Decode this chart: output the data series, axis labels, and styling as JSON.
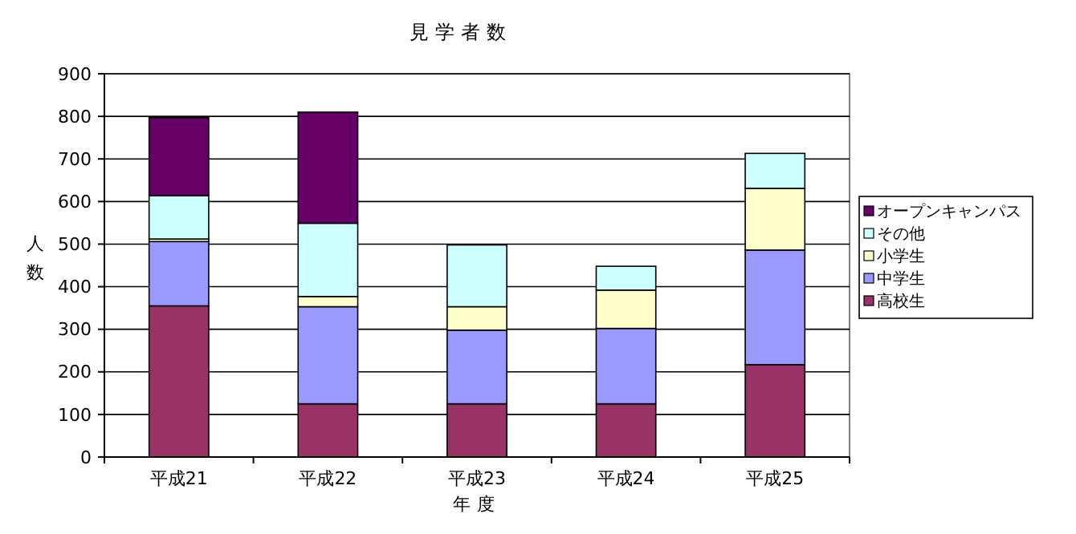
{
  "chart_data": {
    "type": "bar",
    "title": "見学者数",
    "xlabel": "年度",
    "ylabel": "人数",
    "categories": [
      "平成21",
      "平成22",
      "平成23",
      "平成24",
      "平成25"
    ],
    "stacked": true,
    "ylim": [
      0,
      900
    ],
    "yticks": [
      0,
      100,
      200,
      300,
      400,
      500,
      600,
      700,
      800,
      900
    ],
    "grid": "y",
    "legend": "right",
    "series": [
      {
        "name": "高校生",
        "color": "#993366",
        "values": [
          355,
          125,
          125,
          125,
          217
        ]
      },
      {
        "name": "中学生",
        "color": "#9999ff",
        "values": [
          151,
          228,
          173,
          177,
          269
        ]
      },
      {
        "name": "小学生",
        "color": "#ffffcc",
        "values": [
          6,
          24,
          55,
          90,
          145
        ]
      },
      {
        "name": "その他",
        "color": "#ccffff",
        "values": [
          102,
          172,
          145,
          56,
          82
        ]
      },
      {
        "name": "オープンキャンパス",
        "color": "#660066",
        "values": [
          183,
          261,
          0,
          0,
          0
        ]
      }
    ]
  }
}
